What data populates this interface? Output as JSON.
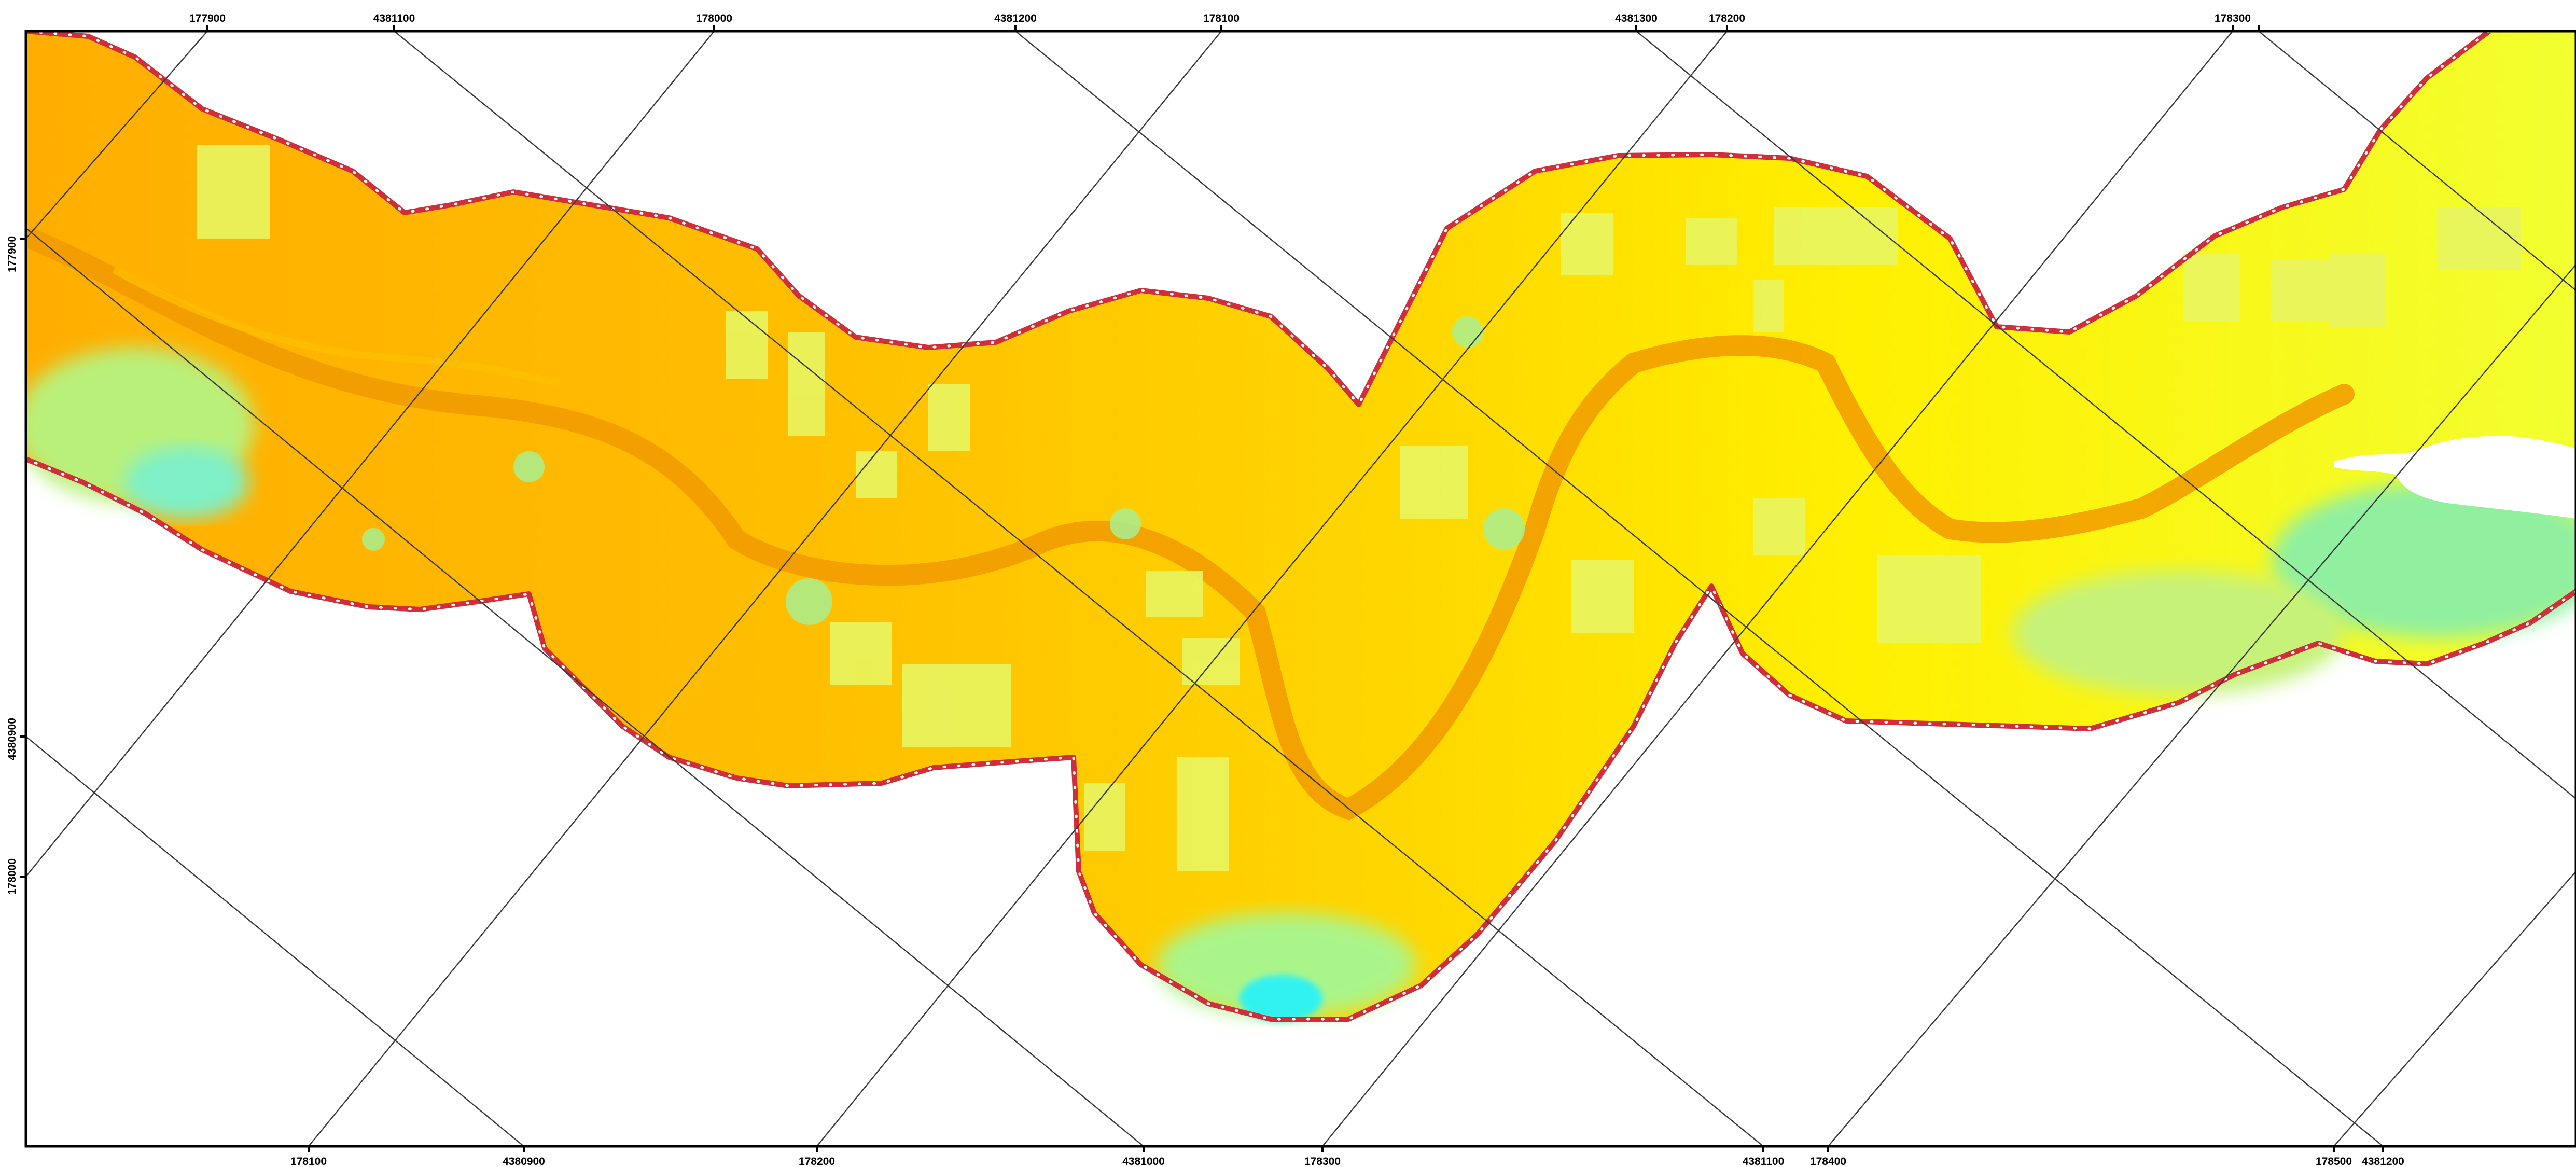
{
  "map": {
    "layer": "elevation raster along creek corridor",
    "palette": {
      "high": "#ffb000",
      "channel": "#f29a00",
      "mid": "#ffd400",
      "upper": "#fff500",
      "low": "#b8f27a",
      "lowest": "#5ff0e0",
      "nodata": "#ffffff",
      "boundary_outline": "#d32f3a",
      "boundary_vertex": "#ffffff",
      "grid": "#3a3a3a",
      "frame": "#000000"
    },
    "boundary_style": "red outline with white vertex dots",
    "graticules": [
      "easting/northing grid",
      "second projected grid (rotated)"
    ]
  },
  "top_labels": [
    "177900",
    "4381100",
    "178000",
    "4381200",
    "178100",
    "4381300",
    "178200",
    "178300"
  ],
  "bottom_labels": [
    "178100",
    "4380900",
    "178200",
    "4381000",
    "178300",
    "4381100",
    "178400",
    "178500",
    "4381200"
  ],
  "left_labels": [
    "177900",
    "4380900",
    "178000"
  ]
}
